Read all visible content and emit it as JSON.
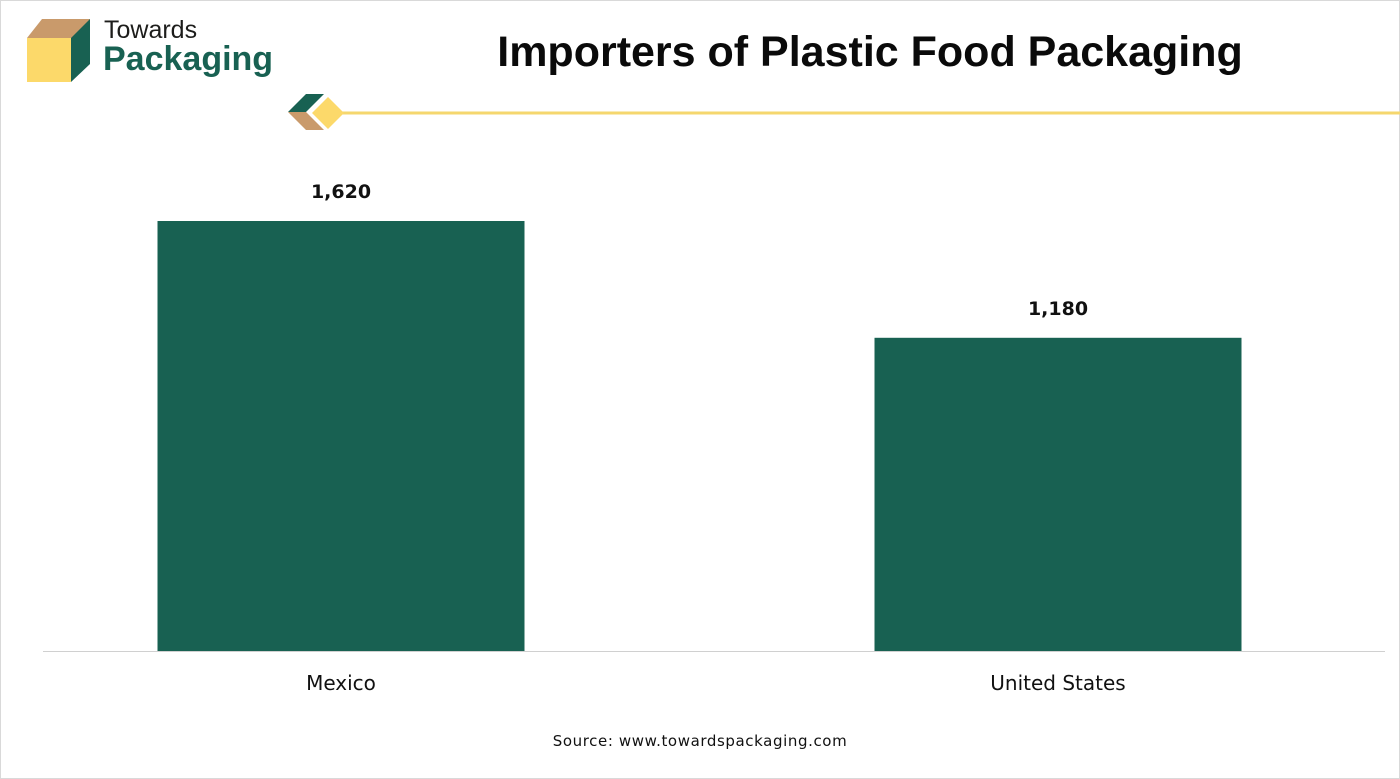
{
  "logo": {
    "line1": "Towards",
    "line2": "Packaging",
    "colors": {
      "tan": "#c99a6b",
      "yellow": "#fcd96a",
      "green": "#186152"
    }
  },
  "chart_data": {
    "type": "bar",
    "title": "Importers of Plastic Food Packaging",
    "categories": [
      "Mexico",
      "United States"
    ],
    "values": [
      1620,
      1180
    ],
    "value_labels": [
      "1,620",
      "1,180"
    ],
    "ylim": [
      0,
      1620
    ],
    "grid": false,
    "legend": "none",
    "bar_color": "#186152",
    "xlabel": "",
    "ylabel": ""
  },
  "source": "Source: www.towardspackaging.com",
  "accent_line_color": "#f5d76e"
}
